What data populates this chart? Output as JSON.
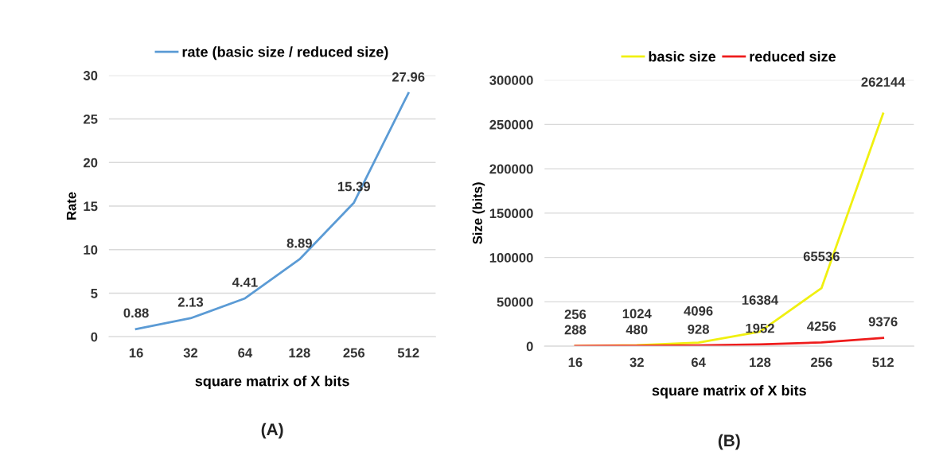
{
  "chart_data": [
    {
      "type": "line",
      "categories": [
        "16",
        "32",
        "64",
        "128",
        "256",
        "512"
      ],
      "xlabel": "square matrix of X bits",
      "ylabel": "Rate",
      "series": [
        {
          "name": "rate (basic size / reduced size)",
          "color": "#5b9bd5",
          "values": [
            0.88,
            2.13,
            4.41,
            8.89,
            15.39,
            27.96
          ]
        }
      ],
      "ylim": [
        0,
        30
      ],
      "yticks": [
        0,
        5,
        10,
        15,
        20,
        25,
        30
      ],
      "grid": "y",
      "legend": "top",
      "data_labels": true,
      "annotations": [
        "(A)"
      ]
    },
    {
      "type": "line",
      "categories": [
        "16",
        "32",
        "64",
        "128",
        "256",
        "512"
      ],
      "xlabel": "square matrix of X bits",
      "ylabel": "Size (bits)",
      "series": [
        {
          "name": "basic size",
          "color": "#f0f010",
          "values": [
            256,
            1024,
            4096,
            16384,
            65536,
            262144
          ]
        },
        {
          "name": "reduced size",
          "color": "#ee1c1c",
          "values": [
            288,
            480,
            928,
            1952,
            4256,
            9376
          ]
        }
      ],
      "ylim": [
        0,
        300000
      ],
      "yticks": [
        0,
        50000,
        100000,
        150000,
        200000,
        250000,
        300000
      ],
      "grid": "y",
      "legend": "top",
      "data_labels": true,
      "annotations": [
        "(B)"
      ]
    }
  ]
}
